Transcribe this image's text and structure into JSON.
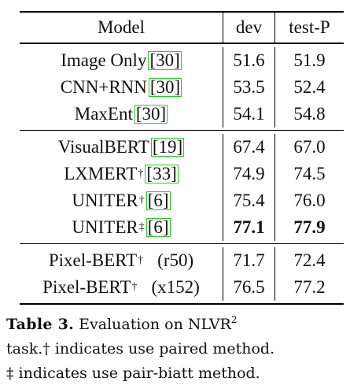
{
  "table": {
    "headers": {
      "model": "Model",
      "dev": "dev",
      "test": "test-P"
    },
    "groups": [
      [
        {
          "model": "Image Only",
          "cite": "30",
          "mark": "",
          "suffix": "",
          "dev": "51.6",
          "test": "51.9",
          "bold": false
        },
        {
          "model": "CNN+RNN",
          "cite": "30",
          "mark": "",
          "suffix": "",
          "dev": "53.5",
          "test": "52.4",
          "bold": false
        },
        {
          "model": "MaxEnt",
          "cite": "30",
          "mark": "",
          "suffix": "",
          "dev": "54.1",
          "test": "54.8",
          "bold": false
        }
      ],
      [
        {
          "model": "VisualBERT",
          "cite": "19",
          "mark": "",
          "suffix": "",
          "dev": "67.4",
          "test": "67.0",
          "bold": false
        },
        {
          "model": "LXMERT",
          "cite": "33",
          "mark": "†",
          "suffix": "",
          "dev": "74.9",
          "test": "74.5",
          "bold": false
        },
        {
          "model": "UNITER",
          "cite": "6",
          "mark": "†",
          "suffix": "",
          "dev": "75.4",
          "test": "76.0",
          "bold": false
        },
        {
          "model": "UNITER",
          "cite": "6",
          "mark": "‡",
          "suffix": "",
          "dev": "77.1",
          "test": "77.9",
          "bold": true
        }
      ],
      [
        {
          "model": "Pixel-BERT",
          "cite": "",
          "mark": "†",
          "suffix": "(r50)",
          "dev": "71.7",
          "test": "72.4",
          "bold": false
        },
        {
          "model": "Pixel-BERT",
          "cite": "",
          "mark": "†",
          "suffix": "(x152)",
          "dev": "76.5",
          "test": "77.2",
          "bold": false
        }
      ]
    ]
  },
  "caption": {
    "label": "Table 3.",
    "text_a": "Evaluation on NLVR",
    "sup": "2",
    "text_b": "task.† indicates use paired method.",
    "text_c": "‡ indicates use pair-biatt method."
  }
}
